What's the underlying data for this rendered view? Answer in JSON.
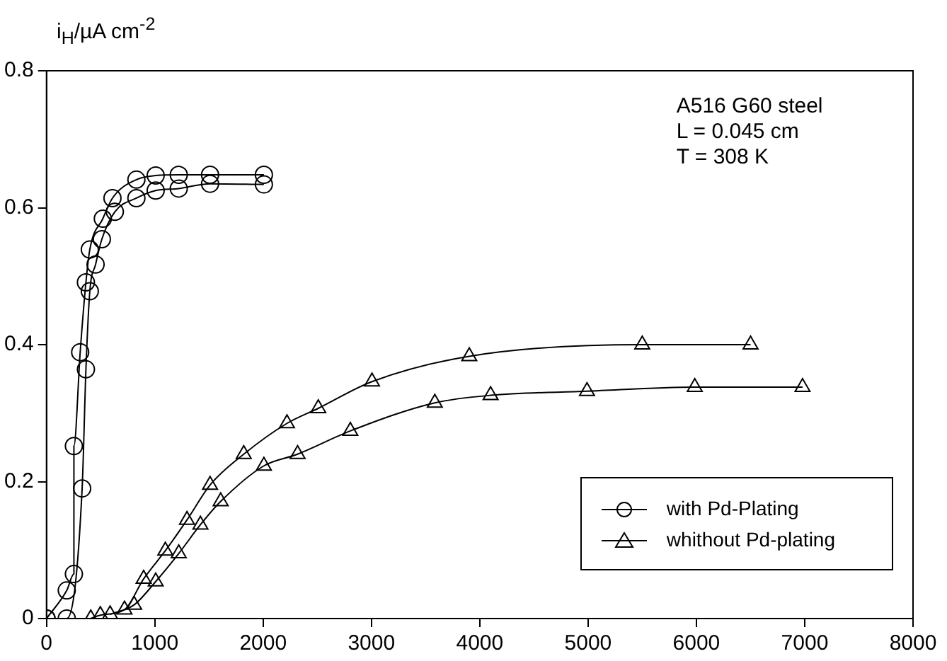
{
  "chart_data": {
    "type": "line",
    "ylabel": "i$_{H}$/µA cm$^{-2}$",
    "annotations": [
      "A516 G60 steel\nL = 0.045 cm\nT = 308 K"
    ],
    "series": [
      {
        "name": "with Pd-Plating",
        "color": "#000000",
        "marker": "circle",
        "x": [
          0,
          187,
          253,
          253,
          311,
          364,
          400,
          520,
          609,
          830,
          1008,
          1221,
          1510,
          2007
        ],
        "values": [
          0,
          0.041,
          0.065,
          0.252,
          0.389,
          0.491,
          0.539,
          0.584,
          0.614,
          0.641,
          0.647,
          0.648,
          0.648,
          0.648
        ]
      },
      {
        "color": "#000000",
        "marker": "circle",
        "x": [
          0,
          187,
          329,
          364,
          400,
          453,
          511,
          631,
          830,
          1008,
          1221,
          1510,
          2007
        ],
        "values": [
          0,
          0,
          0.19,
          0.364,
          0.478,
          0.517,
          0.554,
          0.594,
          0.614,
          0.625,
          0.628,
          0.635,
          0.634
        ]
      },
      {
        "name": "whithout Pd-plating",
        "color": "#000000",
        "marker": "triangle",
        "x": [
          409,
          497,
          720,
          897,
          1097,
          1297,
          1510,
          1821,
          2220,
          2509,
          3005,
          3903,
          5500,
          6500
        ],
        "values": [
          0,
          0.005,
          0.013,
          0.058,
          0.099,
          0.144,
          0.195,
          0.24,
          0.285,
          0.307,
          0.346,
          0.383,
          0.4,
          0.4
        ]
      },
      {
        "color": "#000000",
        "marker": "triangle",
        "x": [
          587,
          809,
          1008,
          1221,
          1421,
          1608,
          2007,
          2318,
          2805,
          3585,
          4100,
          4990,
          5985,
          6980
        ],
        "values": [
          0.006,
          0.02,
          0.054,
          0.095,
          0.137,
          0.171,
          0.223,
          0.24,
          0.274,
          0.315,
          0.326,
          0.332,
          0.338,
          0.338
        ]
      }
    ],
    "xlim": [
      0,
      8000
    ],
    "xticks": [
      0,
      1000,
      2000,
      3000,
      4000,
      5000,
      6000,
      7000,
      8000
    ],
    "ylim": [
      0,
      0.8
    ],
    "yticks": [
      0,
      0.2,
      0.4,
      0.6,
      0.8
    ],
    "grid": false,
    "legend": "bottom right",
    "line_style": "solid"
  }
}
